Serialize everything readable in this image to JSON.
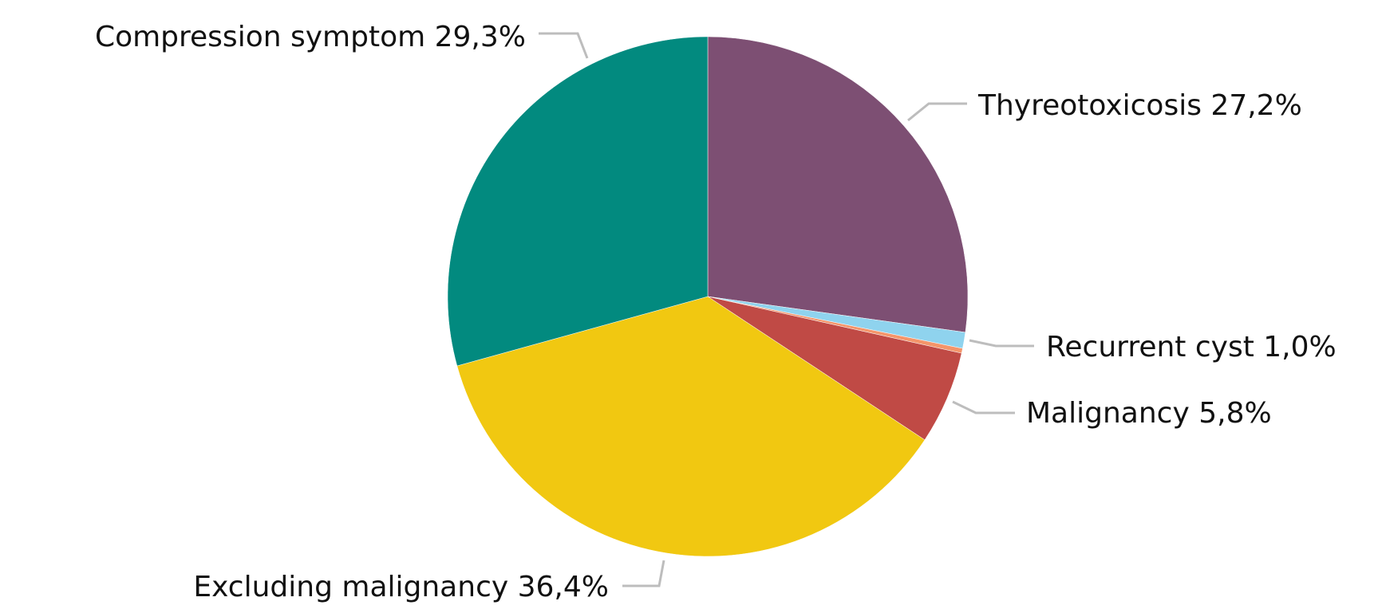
{
  "chart_data": {
    "type": "pie",
    "categories": [
      "Thyreotoxicosis",
      "Recurrent cyst",
      null,
      "Malignancy",
      "Excluding malignancy",
      "Compression symptom"
    ],
    "values": [
      27.2,
      1.0,
      0.3,
      5.8,
      36.4,
      29.3
    ],
    "value_labels": [
      "27,2%",
      "1,0%",
      null,
      "5,8%",
      "36,4%",
      "29,3%"
    ],
    "colors": [
      "#7d4f73",
      "#8fd3ee",
      "#f4956a",
      "#c04a45",
      "#f1c811",
      "#028a7f"
    ]
  }
}
